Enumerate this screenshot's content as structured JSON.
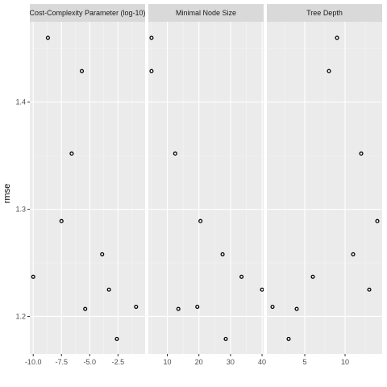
{
  "chart_data": {
    "type": "scatter",
    "ylabel": "rmse",
    "ylim": [
      1.165,
      1.475
    ],
    "yticks": [
      1.2,
      1.3,
      1.4
    ],
    "ytick_labels": [
      "1.2",
      "1.3",
      "1.4"
    ],
    "panels": [
      {
        "strip_label": "Cost-Complexity Parameter (log-10)",
        "xlim": [
          -10.3,
          -0.1
        ],
        "xticks": [
          -10.0,
          -7.5,
          -5.0,
          -2.5
        ],
        "xtick_labels": [
          "-10.0",
          "-7.5",
          "-5.0",
          "-2.5"
        ],
        "points": [
          {
            "x": -10.0,
            "y": 1.237
          },
          {
            "x": -8.7,
            "y": 1.46
          },
          {
            "x": -7.5,
            "y": 1.289
          },
          {
            "x": -6.6,
            "y": 1.352
          },
          {
            "x": -5.7,
            "y": 1.429
          },
          {
            "x": -5.4,
            "y": 1.207
          },
          {
            "x": -3.9,
            "y": 1.258
          },
          {
            "x": -3.3,
            "y": 1.225
          },
          {
            "x": -2.6,
            "y": 1.179
          },
          {
            "x": -0.9,
            "y": 1.209
          }
        ]
      },
      {
        "strip_label": "Minimal Node Size",
        "xlim": [
          4.0,
          40.5
        ],
        "xticks": [
          10,
          20,
          30,
          40
        ],
        "xtick_labels": [
          "10",
          "20",
          "30",
          "40"
        ],
        "points": [
          {
            "x": 5.0,
            "y": 1.46
          },
          {
            "x": 5.0,
            "y": 1.429
          },
          {
            "x": 12.5,
            "y": 1.352
          },
          {
            "x": 13.5,
            "y": 1.207
          },
          {
            "x": 19.5,
            "y": 1.209
          },
          {
            "x": 20.5,
            "y": 1.289
          },
          {
            "x": 27.5,
            "y": 1.258
          },
          {
            "x": 28.5,
            "y": 1.179
          },
          {
            "x": 33.5,
            "y": 1.237
          },
          {
            "x": 40.0,
            "y": 1.225
          }
        ]
      },
      {
        "strip_label": "Tree Depth",
        "xlim": [
          0.3,
          14.6
        ],
        "xticks": [
          5,
          10
        ],
        "xtick_labels": [
          "5",
          "10"
        ],
        "points": [
          {
            "x": 1.0,
            "y": 1.209
          },
          {
            "x": 3.0,
            "y": 1.179
          },
          {
            "x": 4.0,
            "y": 1.207
          },
          {
            "x": 6.0,
            "y": 1.237
          },
          {
            "x": 8.0,
            "y": 1.429
          },
          {
            "x": 9.0,
            "y": 1.46
          },
          {
            "x": 11.0,
            "y": 1.258
          },
          {
            "x": 12.0,
            "y": 1.352
          },
          {
            "x": 13.0,
            "y": 1.225
          },
          {
            "x": 14.0,
            "y": 1.289
          }
        ]
      }
    ]
  }
}
